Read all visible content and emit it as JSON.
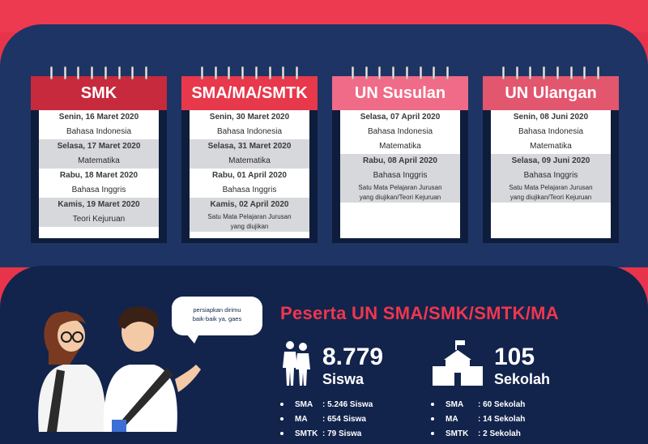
{
  "calendars": [
    {
      "title": "SMK",
      "color": "#c62a3c",
      "rows": [
        {
          "text": "Senin, 16 Maret 2020",
          "bold": true,
          "gray": false
        },
        {
          "text": "Bahasa Indonesia",
          "bold": false,
          "gray": false
        },
        {
          "text": "Selasa, 17 Maret 2020",
          "bold": true,
          "gray": true
        },
        {
          "text": "Matematika",
          "bold": false,
          "gray": true
        },
        {
          "text": "Rabu, 18 Maret 2020",
          "bold": true,
          "gray": false
        },
        {
          "text": "Bahasa Inggris",
          "bold": false,
          "gray": false
        },
        {
          "text": "Kamis, 19 Maret 2020",
          "bold": true,
          "gray": true
        },
        {
          "text": "Teori Kejuruan",
          "bold": false,
          "gray": true
        }
      ]
    },
    {
      "title": "SMA/MA/SMTK",
      "color": "#e8384c",
      "rows": [
        {
          "text": "Senin, 30 Maret 2020",
          "bold": true,
          "gray": false
        },
        {
          "text": "Bahasa Indonesia",
          "bold": false,
          "gray": false
        },
        {
          "text": "Selasa, 31 Maret 2020",
          "bold": true,
          "gray": true
        },
        {
          "text": "Matematika",
          "bold": false,
          "gray": true
        },
        {
          "text": "Rabu, 01 April 2020",
          "bold": true,
          "gray": false
        },
        {
          "text": "Bahasa Inggris",
          "bold": false,
          "gray": false
        },
        {
          "text": "Kamis, 02 April 2020",
          "bold": true,
          "gray": true
        },
        {
          "text": "Satu Mata Pelajaran Jurusan",
          "bold": false,
          "gray": true,
          "small": true
        },
        {
          "text": "yang diujikan",
          "bold": false,
          "gray": true,
          "small": true
        }
      ]
    },
    {
      "title": "UN Susulan",
      "color": "#f06b87",
      "rows": [
        {
          "text": "Selasa, 07 April 2020",
          "bold": true,
          "gray": false
        },
        {
          "text": "Bahasa Indonesia",
          "bold": false,
          "gray": false
        },
        {
          "text": "Matematika",
          "bold": false,
          "gray": false
        },
        {
          "text": "Rabu, 08 April 2020",
          "bold": true,
          "gray": true
        },
        {
          "text": "Bahasa Inggris",
          "bold": false,
          "gray": true
        },
        {
          "text": "Satu Mata Pelajaran Jurusan",
          "bold": false,
          "gray": true,
          "small": true
        },
        {
          "text": "yang diujikan/Teori Kejuruan",
          "bold": false,
          "gray": true,
          "small": true
        }
      ]
    },
    {
      "title": "UN Ulangan",
      "color": "#e2566e",
      "rows": [
        {
          "text": "Senin, 08 Juni 2020",
          "bold": true,
          "gray": false
        },
        {
          "text": "Bahasa Indonesia",
          "bold": false,
          "gray": false
        },
        {
          "text": "Matematika",
          "bold": false,
          "gray": false
        },
        {
          "text": "Selasa, 09 Juni 2020",
          "bold": true,
          "gray": true
        },
        {
          "text": "Bahasa Inggris",
          "bold": false,
          "gray": true
        },
        {
          "text": "Satu Mata Pelajaran Jurusan",
          "bold": false,
          "gray": true,
          "small": true
        },
        {
          "text": "yang diujikan/Teori Kejuruan",
          "bold": false,
          "gray": true,
          "small": true
        }
      ]
    }
  ],
  "speech": {
    "line1": "persiapkan dirimu",
    "line2": "baik-baik ya, gaes"
  },
  "participants": {
    "title": "Peserta UN SMA/SMK/SMTK/MA",
    "students": {
      "number": "8.779",
      "label": "Siswa"
    },
    "schools": {
      "number": "105",
      "label": "Sekolah"
    },
    "student_list": [
      {
        "key": "SMA",
        "value": ": 5.246 Siswa"
      },
      {
        "key": "MA",
        "value": ": 654 Siswa"
      },
      {
        "key": "SMTK",
        "value": ": 79 Siswa"
      }
    ],
    "school_list": [
      {
        "key": "SMA",
        "value": ": 60 Sekolah"
      },
      {
        "key": "MA",
        "value": ": 14 Sekolah"
      },
      {
        "key": "SMTK",
        "value": ": 2 Sekolah"
      }
    ]
  },
  "colors": {
    "navy": "#1e3464",
    "navy_dark": "#12244c",
    "red": "#e8344a",
    "accent": "#f0364e"
  }
}
